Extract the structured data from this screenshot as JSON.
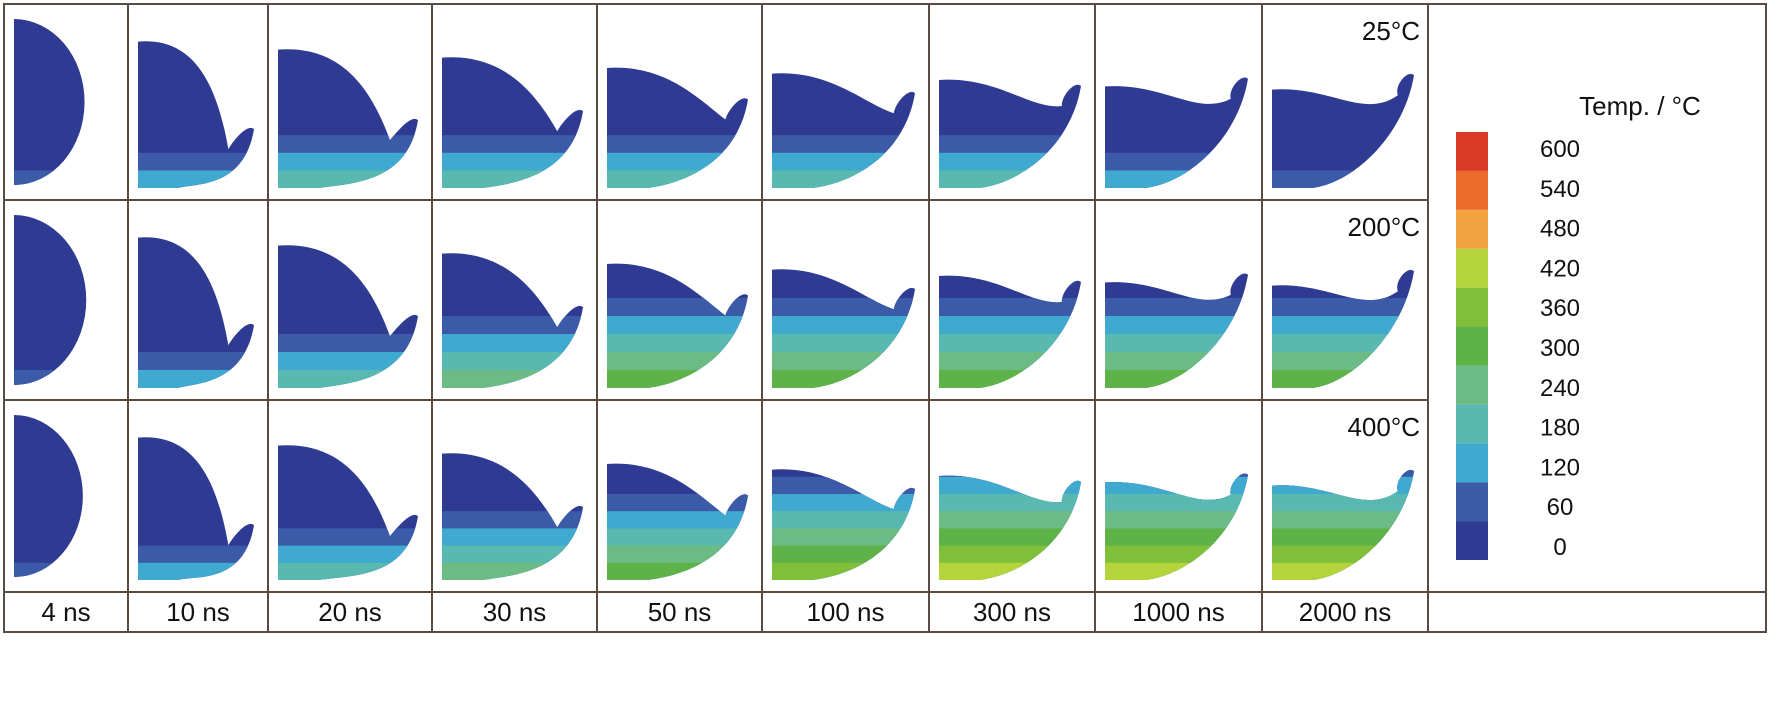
{
  "times": [
    "4 ns",
    "10 ns",
    "20 ns",
    "30 ns",
    "50 ns",
    "100 ns",
    "300 ns",
    "1000 ns",
    "2000 ns"
  ],
  "rows": [
    {
      "label": "25°C",
      "max_level": [
        1,
        2,
        3,
        3,
        3,
        3,
        3,
        2,
        1
      ]
    },
    {
      "label": "200°C",
      "max_level": [
        1,
        2,
        3,
        4,
        5,
        5,
        5,
        5,
        5
      ]
    },
    {
      "label": "400°C",
      "max_level": [
        1,
        2,
        3,
        4,
        5,
        6,
        7,
        7,
        7
      ]
    }
  ],
  "legend": {
    "title": "Temp. / °C",
    "ticks": [
      "600",
      "540",
      "480",
      "420",
      "360",
      "300",
      "240",
      "180",
      "120",
      "60",
      "0"
    ],
    "colors": [
      "#2f3b93",
      "#3b5aa8",
      "#3fa9cf",
      "#59b9b0",
      "#6cbb85",
      "#5fb248",
      "#7fbf3a",
      "#b5d33a",
      "#f1a341",
      "#ec6a2a",
      "#d83a26"
    ]
  },
  "colors": {
    "grid": "#5a4a40",
    "text": "#111111"
  }
}
